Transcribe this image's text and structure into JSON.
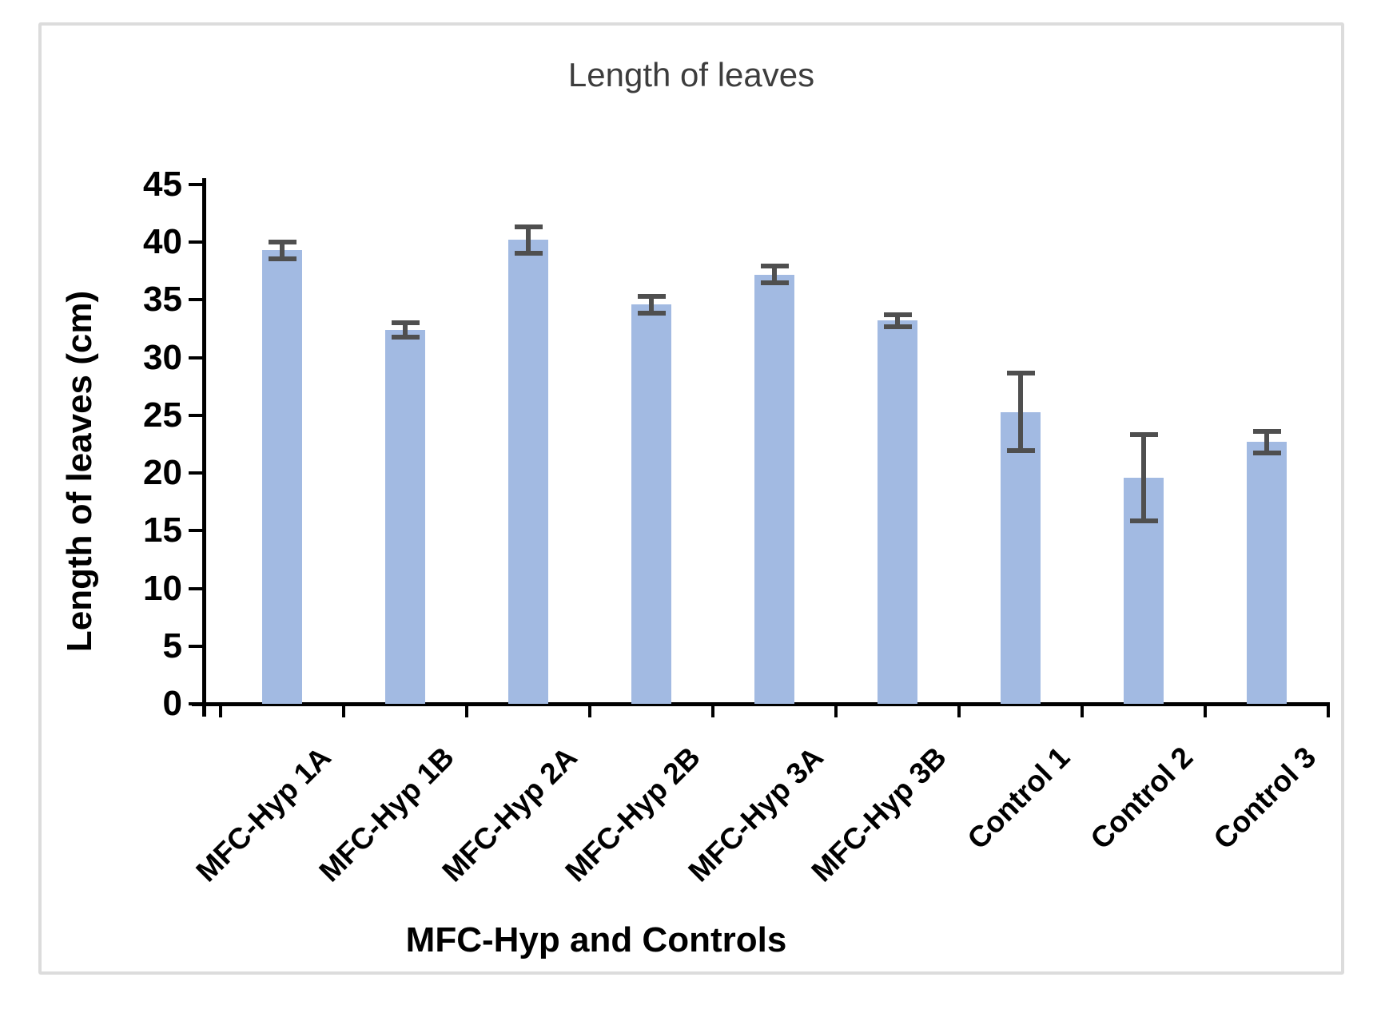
{
  "figure": {
    "title": "Length of leaves"
  },
  "chart_data": {
    "type": "bar",
    "title": "Length of leaves",
    "xlabel": "MFC-Hyp and Controls",
    "ylabel": "Length of leaves (cm)",
    "categories": [
      "MFC-Hyp 1A",
      "MFC-Hyp 1B",
      "MFC-Hyp 2A",
      "MFC-Hyp 2B",
      "MFC-Hyp 3A",
      "MFC-Hyp 3B",
      "Control 1",
      "Control 2",
      "Control 3"
    ],
    "values": [
      39.3,
      32.4,
      40.2,
      34.6,
      37.2,
      33.2,
      25.3,
      19.6,
      22.7
    ],
    "error_bars": [
      0.8,
      0.7,
      1.2,
      0.8,
      0.8,
      0.6,
      3.4,
      3.8,
      1.0
    ],
    "ylim": [
      0,
      45
    ],
    "yticks": [
      0,
      5,
      10,
      15,
      20,
      25,
      30,
      35,
      40,
      45
    ],
    "grid": false,
    "legend": "none",
    "bar_color": "#a2bae2",
    "error_color": "#4f4f4f",
    "title_color": "#3d3d3d",
    "axis_color": "#000000",
    "frame_color": "#dcdcdc"
  }
}
